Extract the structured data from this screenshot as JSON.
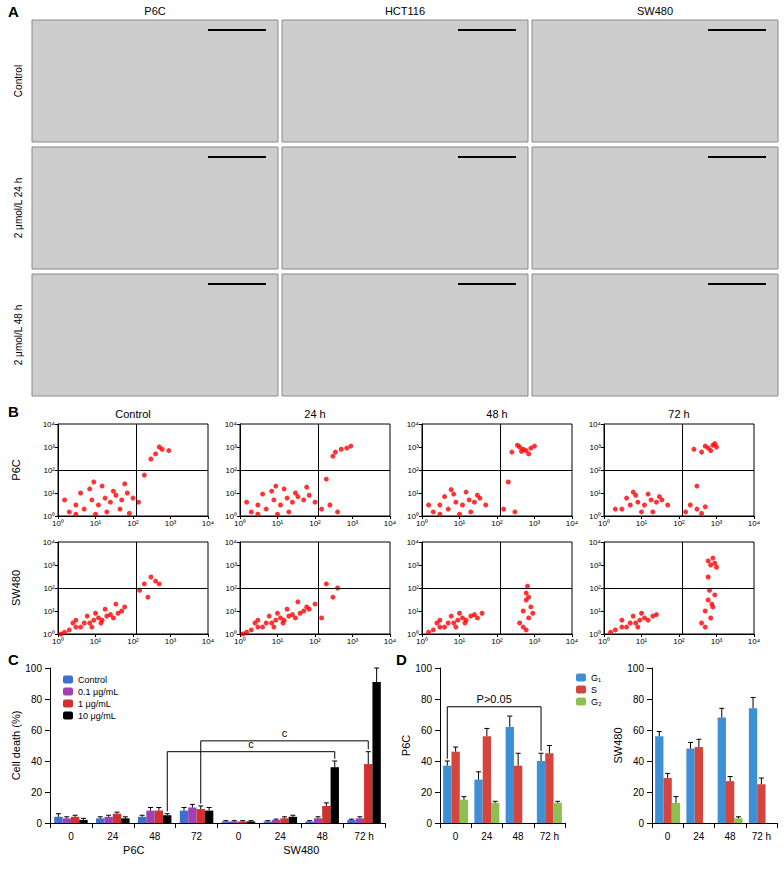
{
  "panel_labels": [
    "A",
    "B",
    "C",
    "D"
  ],
  "panel_a": {
    "columns": [
      "P6C",
      "HCT116",
      "SW480"
    ],
    "rows": [
      "Control",
      "2 μmol/L 24 h",
      "2 μmol/L 48 h"
    ]
  },
  "panel_b": {
    "columns": [
      "Control",
      "24 h",
      "48 h",
      "72 h"
    ],
    "rows": [
      "P6C",
      "SW480"
    ]
  },
  "chart_data": [
    {
      "type": "scatter",
      "log": true,
      "xlim": [
        1,
        10000
      ],
      "ylim": [
        1,
        10000
      ],
      "xticks": [
        {
          "value": 1,
          "label": "10⁰"
        },
        {
          "value": 10,
          "label": "10¹"
        },
        {
          "value": 100,
          "label": "10²"
        },
        {
          "value": 1000,
          "label": "10³"
        },
        {
          "value": 10000,
          "label": "10⁴"
        }
      ],
      "yticks": [
        {
          "value": 1,
          "label": "10⁰"
        },
        {
          "value": 10,
          "label": "10¹"
        },
        {
          "value": 100,
          "label": "10²"
        },
        {
          "value": 1000,
          "label": "10³"
        },
        {
          "value": 10000,
          "label": "10⁴"
        }
      ],
      "color": "#ff0000",
      "marker": "circle",
      "gates": {
        "x": 120,
        "y": 100
      },
      "x": [
        2,
        3,
        5,
        8,
        12,
        18,
        25,
        35,
        50,
        70,
        100,
        140,
        4,
        7,
        15,
        30,
        60,
        10,
        20,
        45,
        3,
        9,
        400,
        600,
        900,
        300,
        500,
        200,
        1.5,
        80
      ],
      "values": [
        1.5,
        3,
        2,
        5,
        3,
        6,
        4,
        8,
        5,
        10,
        6,
        4,
        10,
        15,
        20,
        12,
        25,
        1.2,
        1.5,
        2,
        1.2,
        30,
        500,
        800,
        700,
        300,
        1000,
        60,
        5,
        1.3
      ]
    },
    {
      "type": "scatter",
      "log": true,
      "xlim": [
        1,
        10000
      ],
      "ylim": [
        1,
        10000
      ],
      "xticks": [
        {
          "value": 1,
          "label": "10⁰"
        },
        {
          "value": 10,
          "label": "10¹"
        },
        {
          "value": 100,
          "label": "10²"
        },
        {
          "value": 1000,
          "label": "10³"
        },
        {
          "value": 10000,
          "label": "10⁴"
        }
      ],
      "yticks": [
        {
          "value": 1,
          "label": "10⁰"
        },
        {
          "value": 10,
          "label": "10¹"
        },
        {
          "value": 100,
          "label": "10²"
        },
        {
          "value": 1000,
          "label": "10³"
        },
        {
          "value": 10000,
          "label": "10⁴"
        }
      ],
      "color": "#ff0000",
      "marker": "circle",
      "gates": {
        "x": 120,
        "y": 100
      },
      "x": [
        2,
        3,
        5,
        8,
        12,
        18,
        25,
        35,
        50,
        70,
        100,
        4,
        7,
        15,
        30,
        60,
        10,
        20,
        3,
        9,
        150,
        250,
        400,
        200,
        350,
        500,
        700,
        300,
        900,
        1.5
      ],
      "values": [
        1.5,
        3,
        2,
        5,
        3,
        6,
        4,
        7,
        5,
        8,
        4,
        9,
        12,
        15,
        10,
        18,
        1.2,
        1.5,
        1.2,
        20,
        2,
        3,
        1.5,
        40,
        600,
        800,
        900,
        400,
        1100,
        4
      ]
    },
    {
      "type": "scatter",
      "log": true,
      "xlim": [
        1,
        10000
      ],
      "ylim": [
        1,
        10000
      ],
      "xticks": [
        {
          "value": 1,
          "label": "10⁰"
        },
        {
          "value": 10,
          "label": "10¹"
        },
        {
          "value": 100,
          "label": "10²"
        },
        {
          "value": 1000,
          "label": "10³"
        },
        {
          "value": 10000,
          "label": "10⁴"
        }
      ],
      "yticks": [
        {
          "value": 1,
          "label": "10⁰"
        },
        {
          "value": 10,
          "label": "10¹"
        },
        {
          "value": 100,
          "label": "10²"
        },
        {
          "value": 1000,
          "label": "10³"
        },
        {
          "value": 10000,
          "label": "10⁴"
        }
      ],
      "color": "#ff0000",
      "marker": "circle",
      "gates": {
        "x": 120,
        "y": 100
      },
      "x": [
        2,
        3,
        5,
        8,
        12,
        18,
        25,
        35,
        50,
        4,
        7,
        15,
        30,
        10,
        20,
        3,
        6,
        150,
        300,
        500,
        250,
        400,
        600,
        800,
        350,
        700,
        1000,
        450,
        200,
        1.5
      ],
      "values": [
        1.5,
        3,
        2,
        4,
        3,
        5,
        4,
        6,
        3,
        7,
        9,
        11,
        8,
        1.2,
        1.5,
        1.2,
        14,
        2,
        1.5,
        800,
        600,
        1000,
        700,
        900,
        1200,
        500,
        1100,
        650,
        30,
        3
      ]
    },
    {
      "type": "scatter",
      "log": true,
      "xlim": [
        1,
        10000
      ],
      "ylim": [
        1,
        10000
      ],
      "xticks": [
        {
          "value": 1,
          "label": "10⁰"
        },
        {
          "value": 10,
          "label": "10¹"
        },
        {
          "value": 100,
          "label": "10²"
        },
        {
          "value": 1000,
          "label": "10³"
        },
        {
          "value": 10000,
          "label": "10⁴"
        }
      ],
      "yticks": [
        {
          "value": 1,
          "label": "10⁰"
        },
        {
          "value": 10,
          "label": "10¹"
        },
        {
          "value": 100,
          "label": "10²"
        },
        {
          "value": 1000,
          "label": "10³"
        },
        {
          "value": 10000,
          "label": "10⁴"
        }
      ],
      "color": "#ff0000",
      "marker": "circle",
      "gates": {
        "x": 120,
        "y": 100
      },
      "x": [
        3,
        5,
        8,
        12,
        18,
        25,
        35,
        50,
        4,
        7,
        15,
        30,
        10,
        20,
        6,
        150,
        200,
        300,
        400,
        500,
        250,
        600,
        800,
        1000,
        400,
        700,
        900,
        500,
        300,
        2
      ],
      "values": [
        2,
        3,
        4,
        3,
        5,
        4,
        5,
        3,
        6,
        8,
        9,
        7,
        1.5,
        1.5,
        11,
        1.5,
        3,
        2,
        1.3,
        2.5,
        800,
        900,
        1200,
        1000,
        600,
        700,
        1400,
        1100,
        20,
        2
      ]
    },
    {
      "type": "scatter",
      "log": true,
      "xlim": [
        1,
        10000
      ],
      "ylim": [
        1,
        10000
      ],
      "xticks": [
        {
          "value": 1,
          "label": "10⁰"
        },
        {
          "value": 10,
          "label": "10¹"
        },
        {
          "value": 100,
          "label": "10²"
        },
        {
          "value": 1000,
          "label": "10³"
        },
        {
          "value": 10000,
          "label": "10⁴"
        }
      ],
      "yticks": [
        {
          "value": 1,
          "label": "10⁰"
        },
        {
          "value": 10,
          "label": "10¹"
        },
        {
          "value": 100,
          "label": "10²"
        },
        {
          "value": 1000,
          "label": "10³"
        },
        {
          "value": 10000,
          "label": "10⁴"
        }
      ],
      "color": "#ff0000",
      "marker": "circle",
      "gates": {
        "x": 120,
        "y": 100
      },
      "x": [
        1.5,
        2,
        3,
        4,
        5,
        7,
        9,
        12,
        15,
        20,
        25,
        30,
        40,
        50,
        3,
        6,
        10,
        18,
        8,
        14,
        2.5,
        60,
        200,
        300,
        400,
        150,
        250,
        500,
        35,
        1.2
      ],
      "values": [
        1.2,
        1.5,
        2,
        2,
        3,
        3,
        4,
        5,
        4,
        6,
        7,
        5,
        8,
        10,
        4,
        6,
        8,
        12,
        2,
        3,
        3,
        15,
        150,
        300,
        200,
        80,
        40,
        150,
        20,
        1
      ]
    },
    {
      "type": "scatter",
      "log": true,
      "xlim": [
        1,
        10000
      ],
      "ylim": [
        1,
        10000
      ],
      "xticks": [
        {
          "value": 1,
          "label": "10⁰"
        },
        {
          "value": 10,
          "label": "10¹"
        },
        {
          "value": 100,
          "label": "10²"
        },
        {
          "value": 1000,
          "label": "10³"
        },
        {
          "value": 10000,
          "label": "10⁴"
        }
      ],
      "yticks": [
        {
          "value": 1,
          "label": "10⁰"
        },
        {
          "value": 10,
          "label": "10¹"
        },
        {
          "value": 100,
          "label": "10²"
        },
        {
          "value": 1000,
          "label": "10³"
        },
        {
          "value": 10000,
          "label": "10⁴"
        }
      ],
      "color": "#ff0000",
      "marker": "circle",
      "gates": {
        "x": 120,
        "y": 100
      },
      "x": [
        1.5,
        2,
        3,
        4,
        5,
        7,
        9,
        12,
        15,
        20,
        25,
        30,
        40,
        50,
        70,
        3,
        6,
        10,
        18,
        8,
        14,
        2.5,
        60,
        100,
        150,
        200,
        300,
        400,
        35,
        1.2
      ],
      "values": [
        1.2,
        1.5,
        2,
        2,
        3,
        3,
        4,
        5,
        4,
        6,
        7,
        5,
        8,
        10,
        12,
        4,
        6,
        8,
        12,
        2,
        3,
        3,
        15,
        20,
        5,
        150,
        40,
        100,
        25,
        1
      ]
    },
    {
      "type": "scatter",
      "log": true,
      "xlim": [
        1,
        10000
      ],
      "ylim": [
        1,
        10000
      ],
      "xticks": [
        {
          "value": 1,
          "label": "10⁰"
        },
        {
          "value": 10,
          "label": "10¹"
        },
        {
          "value": 100,
          "label": "10²"
        },
        {
          "value": 1000,
          "label": "10³"
        },
        {
          "value": 10000,
          "label": "10⁴"
        }
      ],
      "yticks": [
        {
          "value": 1,
          "label": "10⁰"
        },
        {
          "value": 10,
          "label": "10¹"
        },
        {
          "value": 100,
          "label": "10²"
        },
        {
          "value": 1000,
          "label": "10³"
        },
        {
          "value": 10000,
          "label": "10⁴"
        }
      ],
      "color": "#ff0000",
      "marker": "circle",
      "gates": {
        "x": 120,
        "y": 100
      },
      "x": [
        1.5,
        2,
        3,
        4,
        5,
        7,
        9,
        12,
        15,
        20,
        25,
        30,
        40,
        3,
        6,
        10,
        8,
        14,
        2.5,
        400,
        500,
        600,
        700,
        800,
        600,
        500,
        700,
        900,
        600,
        650
      ],
      "values": [
        1.2,
        1.5,
        2,
        2,
        3,
        3,
        4,
        5,
        4,
        6,
        7,
        5,
        8,
        4,
        6,
        8,
        2,
        3,
        3,
        3,
        10,
        30,
        5,
        15,
        60,
        2,
        40,
        8,
        1.5,
        120
      ]
    },
    {
      "type": "scatter",
      "log": true,
      "xlim": [
        1,
        10000
      ],
      "ylim": [
        1,
        10000
      ],
      "xticks": [
        {
          "value": 1,
          "label": "10⁰"
        },
        {
          "value": 10,
          "label": "10¹"
        },
        {
          "value": 100,
          "label": "10²"
        },
        {
          "value": 1000,
          "label": "10³"
        },
        {
          "value": 10000,
          "label": "10⁴"
        }
      ],
      "yticks": [
        {
          "value": 1,
          "label": "10⁰"
        },
        {
          "value": 10,
          "label": "10¹"
        },
        {
          "value": 100,
          "label": "10²"
        },
        {
          "value": 1000,
          "label": "10³"
        },
        {
          "value": 10000,
          "label": "10⁴"
        }
      ],
      "color": "#ff0000",
      "marker": "circle",
      "gates": {
        "x": 120,
        "y": 100
      },
      "x": [
        1.5,
        2,
        3,
        4,
        5,
        7,
        9,
        12,
        15,
        20,
        25,
        3,
        6,
        10,
        8,
        400,
        500,
        600,
        700,
        800,
        900,
        500,
        650,
        750,
        600,
        700,
        800,
        900,
        600,
        1000
      ],
      "values": [
        1.2,
        1.5,
        2,
        2,
        3,
        3,
        4,
        5,
        4,
        6,
        7,
        4,
        6,
        8,
        2,
        3,
        10,
        30,
        5,
        15,
        50,
        2,
        80,
        20,
        1500,
        1000,
        2000,
        1200,
        300,
        800
      ]
    },
    {
      "type": "bar",
      "categories": [
        "0",
        "24",
        "48",
        "72",
        "0",
        "24",
        "48",
        "72 h"
      ],
      "x_groups": [
        {
          "label": "P6C",
          "from": 0,
          "to": 3
        },
        {
          "label": "SW480",
          "from": 4,
          "to": 7
        }
      ],
      "ylabel": "Cell death (%)",
      "ylim": [
        0,
        100
      ],
      "yticks": [
        0,
        20,
        40,
        60,
        80,
        100
      ],
      "legend": "top-left",
      "series": [
        {
          "name": "Control",
          "color": "#3d6fd1",
          "values": [
            4,
            3,
            4,
            8,
            1,
            1,
            1,
            2
          ],
          "errors": [
            2,
            1,
            1,
            2,
            0.5,
            0.5,
            0.5,
            0.5
          ]
        },
        {
          "name": "0.1 μg/mL",
          "color": "#a040b4",
          "values": [
            3,
            4,
            8,
            10,
            1,
            2,
            3,
            3
          ],
          "errors": [
            1,
            1,
            2,
            2,
            0.5,
            0.5,
            1,
            1
          ]
        },
        {
          "name": "1 μg/mL",
          "color": "#d32f2f",
          "values": [
            4,
            6,
            8,
            9,
            1,
            3,
            11,
            38
          ],
          "errors": [
            1,
            1,
            2,
            2,
            0.5,
            1,
            2,
            8
          ]
        },
        {
          "name": "10 μg/mL",
          "color": "#000000",
          "values": [
            2,
            3,
            5,
            8,
            1,
            4,
            36,
            91
          ],
          "errors": [
            1,
            1,
            1,
            2,
            0.5,
            1,
            4,
            9
          ]
        }
      ],
      "annotations": [
        {
          "text": "c",
          "from": 2,
          "to": 6,
          "series": "10 μg/mL"
        },
        {
          "text": "c",
          "from": 3,
          "to": 7,
          "series": "1 μg/mL"
        }
      ]
    },
    {
      "type": "bar",
      "categories": [
        "0",
        "24",
        "48",
        "72 h"
      ],
      "ylabel": "P6C",
      "ylim": [
        0,
        100
      ],
      "yticks": [
        0,
        20,
        40,
        60,
        80,
        100
      ],
      "legend": "top-right",
      "series": [
        {
          "name": "G₁",
          "color": "#3d8fd6",
          "values": [
            37,
            28,
            62,
            40
          ],
          "errors": [
            3,
            5,
            7,
            5
          ]
        },
        {
          "name": "S",
          "color": "#d6453d",
          "values": [
            46,
            56,
            37,
            45
          ],
          "errors": [
            3,
            5,
            8,
            5
          ]
        },
        {
          "name": "G₂",
          "color": "#8cc152",
          "values": [
            15,
            13,
            null,
            13
          ],
          "errors": [
            2,
            1,
            null,
            1
          ]
        }
      ],
      "annotations": [
        {
          "text": "P>0.05",
          "from": 0,
          "to": 3,
          "series": "G₁"
        }
      ]
    },
    {
      "type": "bar",
      "categories": [
        "0",
        "24",
        "48",
        "72 h"
      ],
      "ylabel": "SW480",
      "ylim": [
        0,
        100
      ],
      "yticks": [
        0,
        20,
        40,
        60,
        80,
        100
      ],
      "series": [
        {
          "name": "G₁",
          "color": "#3d8fd6",
          "values": [
            56,
            48,
            68,
            74
          ],
          "errors": [
            3,
            4,
            6,
            7
          ]
        },
        {
          "name": "S",
          "color": "#d6453d",
          "values": [
            29,
            49,
            27,
            25
          ],
          "errors": [
            3,
            5,
            3,
            4
          ]
        },
        {
          "name": "G₂",
          "color": "#8cc152",
          "values": [
            13,
            null,
            3,
            null
          ],
          "errors": [
            4,
            null,
            1,
            null
          ]
        }
      ]
    }
  ]
}
